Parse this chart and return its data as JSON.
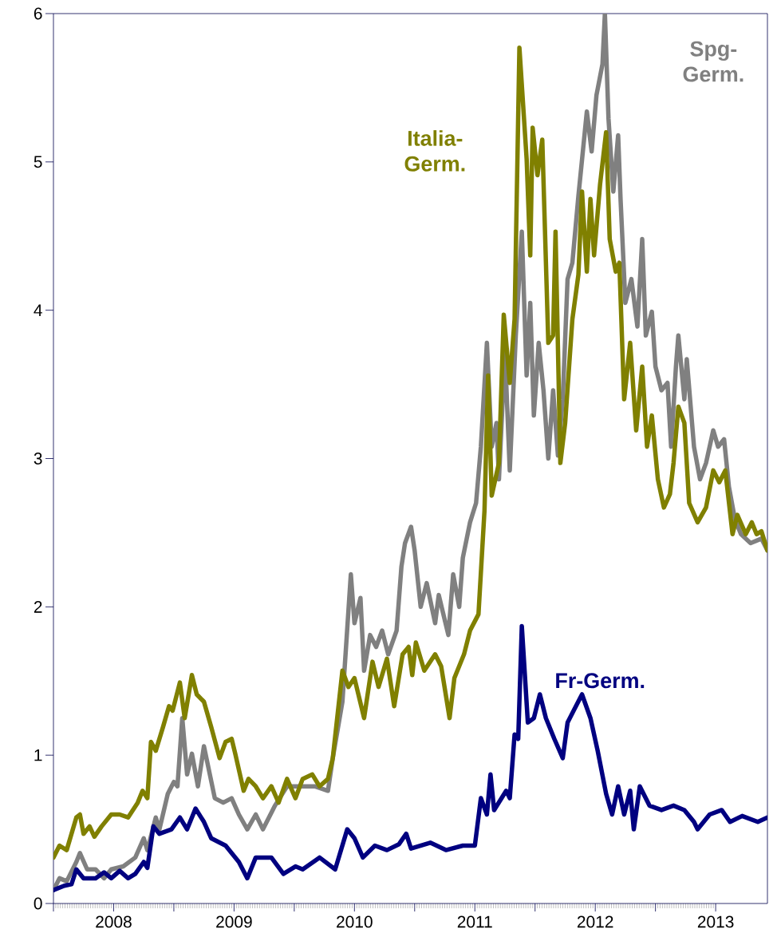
{
  "chart_data": {
    "type": "line",
    "xlim": [
      2008,
      2013.93
    ],
    "ylim": [
      0,
      6
    ],
    "yticks": [
      0,
      1,
      2,
      3,
      4,
      5,
      6
    ],
    "xticks": [
      {
        "value": 2008,
        "label": null
      },
      {
        "value": 2008.5,
        "label": "2008"
      },
      {
        "value": 2009,
        "label": null
      },
      {
        "value": 2009.5,
        "label": "2009"
      },
      {
        "value": 2010,
        "label": null
      },
      {
        "value": 2010.5,
        "label": "2010"
      },
      {
        "value": 2011,
        "label": null
      },
      {
        "value": 2011.5,
        "label": "2011"
      },
      {
        "value": 2012,
        "label": null
      },
      {
        "value": 2012.5,
        "label": "2012"
      },
      {
        "value": 2013,
        "label": null
      },
      {
        "value": 2013.5,
        "label": "2013"
      }
    ],
    "series": [
      {
        "name": "Spg-Germ.",
        "color": "#808080",
        "x": [
          2008.0,
          2008.05,
          2008.11,
          2008.19,
          2008.22,
          2008.28,
          2008.35,
          2008.42,
          2008.48,
          2008.58,
          2008.68,
          2008.75,
          2008.78,
          2008.85,
          2008.88,
          2008.95,
          2009.0,
          2009.03,
          2009.07,
          2009.11,
          2009.15,
          2009.2,
          2009.25,
          2009.34,
          2009.41,
          2009.48,
          2009.54,
          2009.61,
          2009.68,
          2009.74,
          2009.84,
          2009.94,
          2010.04,
          2010.17,
          2010.28,
          2010.32,
          2010.4,
          2010.47,
          2010.5,
          2010.55,
          2010.58,
          2010.63,
          2010.68,
          2010.73,
          2010.78,
          2010.85,
          2010.89,
          2010.92,
          2010.97,
          2011.0,
          2011.05,
          2011.1,
          2011.17,
          2011.2,
          2011.28,
          2011.32,
          2011.37,
          2011.4,
          2011.46,
          2011.51,
          2011.55,
          2011.6,
          2011.64,
          2011.68,
          2011.7,
          2011.75,
          2011.79,
          2011.84,
          2011.89,
          2011.93,
          2011.96,
          2011.99,
          2012.03,
          2012.07,
          2012.11,
          2012.15,
          2012.19,
          2012.23,
          2012.27,
          2012.31,
          2012.36,
          2012.43,
          2012.47,
          2012.51,
          2012.56,
          2012.58,
          2012.61,
          2012.65,
          2012.69,
          2012.71,
          2012.75,
          2012.8,
          2012.85,
          2012.89,
          2012.92,
          2012.97,
          2013.0,
          2013.05,
          2013.1,
          2013.13,
          2013.17,
          2013.19,
          2013.24,
          2013.26,
          2013.32,
          2013.37,
          2013.42,
          2013.48,
          2013.52,
          2013.57,
          2013.61,
          2013.66,
          2013.71,
          2013.79,
          2013.88,
          2013.93
        ],
        "values": [
          0.09,
          0.17,
          0.15,
          0.28,
          0.34,
          0.23,
          0.23,
          0.17,
          0.23,
          0.25,
          0.31,
          0.44,
          0.36,
          0.58,
          0.5,
          0.74,
          0.82,
          0.79,
          1.25,
          0.87,
          1.01,
          0.79,
          1.06,
          0.71,
          0.68,
          0.71,
          0.6,
          0.5,
          0.6,
          0.5,
          0.66,
          0.79,
          0.79,
          0.79,
          0.76,
          0.98,
          1.36,
          2.22,
          1.89,
          2.06,
          1.57,
          1.81,
          1.73,
          1.84,
          1.68,
          1.84,
          2.27,
          2.43,
          2.54,
          2.38,
          2.0,
          2.16,
          1.89,
          2.08,
          1.81,
          2.22,
          2.0,
          2.33,
          2.57,
          2.7,
          3.08,
          3.78,
          3.08,
          3.24,
          2.86,
          3.72,
          2.92,
          3.83,
          4.53,
          3.56,
          4.05,
          3.29,
          3.78,
          3.46,
          3.0,
          3.46,
          3.02,
          3.4,
          4.21,
          4.32,
          4.77,
          5.34,
          5.07,
          5.45,
          5.66,
          6.0,
          5.29,
          4.8,
          5.18,
          4.75,
          4.05,
          4.21,
          3.89,
          4.48,
          3.83,
          3.99,
          3.62,
          3.46,
          3.51,
          3.08,
          3.62,
          3.83,
          3.4,
          3.67,
          3.08,
          2.86,
          2.97,
          3.19,
          3.08,
          3.13,
          2.81,
          2.59,
          2.49,
          2.43,
          2.46,
          2.38
        ]
      },
      {
        "name": "Italia-Germ.",
        "color": "#808000",
        "x": [
          2008.0,
          2008.05,
          2008.11,
          2008.19,
          2008.22,
          2008.25,
          2008.3,
          2008.34,
          2008.4,
          2008.48,
          2008.55,
          2008.62,
          2008.7,
          2008.74,
          2008.78,
          2008.81,
          2008.85,
          2008.91,
          2008.96,
          2008.99,
          2009.05,
          2009.09,
          2009.15,
          2009.19,
          2009.25,
          2009.31,
          2009.38,
          2009.43,
          2009.48,
          2009.51,
          2009.58,
          2009.62,
          2009.68,
          2009.74,
          2009.81,
          2009.87,
          2009.94,
          2010.01,
          2010.07,
          2010.15,
          2010.21,
          2010.28,
          2010.32,
          2010.4,
          2010.45,
          2010.5,
          2010.58,
          2010.65,
          2010.7,
          2010.77,
          2010.83,
          2010.9,
          2010.95,
          2010.98,
          2011.01,
          2011.08,
          2011.17,
          2011.22,
          2011.29,
          2011.33,
          2011.41,
          2011.46,
          2011.53,
          2011.58,
          2011.61,
          2011.64,
          2011.7,
          2011.74,
          2011.79,
          2011.83,
          2011.87,
          2011.93,
          2011.96,
          2011.98,
          2012.02,
          2012.06,
          2012.11,
          2012.15,
          2012.17,
          2012.21,
          2012.25,
          2012.31,
          2012.36,
          2012.39,
          2012.43,
          2012.46,
          2012.49,
          2012.54,
          2012.59,
          2012.62,
          2012.67,
          2012.7,
          2012.74,
          2012.79,
          2012.84,
          2012.89,
          2012.93,
          2012.97,
          2013.02,
          2013.07,
          2013.12,
          2013.15,
          2013.19,
          2013.24,
          2013.28,
          2013.35,
          2013.42,
          2013.48,
          2013.53,
          2013.58,
          2013.64,
          2013.68,
          2013.75,
          2013.8,
          2013.84,
          2013.88,
          2013.93
        ],
        "values": [
          0.31,
          0.39,
          0.36,
          0.58,
          0.6,
          0.47,
          0.52,
          0.45,
          0.52,
          0.6,
          0.6,
          0.58,
          0.68,
          0.76,
          0.71,
          1.09,
          1.03,
          1.19,
          1.33,
          1.3,
          1.49,
          1.25,
          1.54,
          1.41,
          1.36,
          1.19,
          0.98,
          1.09,
          1.11,
          1.01,
          0.76,
          0.84,
          0.79,
          0.71,
          0.79,
          0.68,
          0.84,
          0.71,
          0.84,
          0.87,
          0.79,
          0.84,
          0.98,
          1.57,
          1.46,
          1.52,
          1.25,
          1.63,
          1.46,
          1.65,
          1.33,
          1.68,
          1.73,
          1.54,
          1.76,
          1.57,
          1.68,
          1.6,
          1.25,
          1.52,
          1.68,
          1.84,
          1.95,
          2.65,
          3.56,
          2.75,
          2.97,
          3.97,
          3.51,
          3.94,
          5.77,
          5.02,
          4.37,
          5.23,
          4.91,
          5.15,
          3.78,
          3.83,
          4.53,
          2.97,
          3.24,
          3.94,
          4.24,
          4.8,
          4.26,
          4.75,
          4.37,
          4.85,
          5.2,
          4.48,
          4.26,
          4.32,
          3.4,
          3.78,
          3.19,
          3.62,
          3.08,
          3.29,
          2.86,
          2.67,
          2.76,
          2.97,
          3.35,
          3.24,
          2.7,
          2.57,
          2.67,
          2.92,
          2.84,
          2.92,
          2.49,
          2.62,
          2.49,
          2.57,
          2.49,
          2.51,
          2.38
        ]
      },
      {
        "name": "Fr-Germ.",
        "color": "#000080",
        "x": [
          2008.0,
          2008.09,
          2008.15,
          2008.19,
          2008.25,
          2008.35,
          2008.42,
          2008.48,
          2008.55,
          2008.62,
          2008.68,
          2008.75,
          2008.78,
          2008.83,
          2008.88,
          2008.98,
          2009.05,
          2009.11,
          2009.18,
          2009.25,
          2009.31,
          2009.43,
          2009.54,
          2009.61,
          2009.68,
          2009.81,
          2009.91,
          2010.01,
          2010.07,
          2010.21,
          2010.34,
          2010.44,
          2010.5,
          2010.57,
          2010.67,
          2010.77,
          2010.87,
          2010.93,
          2010.97,
          2011.13,
          2011.26,
          2011.4,
          2011.5,
          2011.55,
          2011.6,
          2011.63,
          2011.66,
          2011.76,
          2011.79,
          2011.83,
          2011.86,
          2011.89,
          2011.94,
          2011.99,
          2012.04,
          2012.09,
          2012.16,
          2012.23,
          2012.27,
          2012.32,
          2012.39,
          2012.46,
          2012.52,
          2012.59,
          2012.64,
          2012.69,
          2012.74,
          2012.79,
          2012.82,
          2012.87,
          2012.95,
          2013.05,
          2013.15,
          2013.24,
          2013.32,
          2013.35,
          2013.45,
          2013.55,
          2013.62,
          2013.72,
          2013.85,
          2013.93
        ],
        "values": [
          0.09,
          0.12,
          0.13,
          0.23,
          0.17,
          0.17,
          0.21,
          0.17,
          0.22,
          0.17,
          0.2,
          0.28,
          0.24,
          0.52,
          0.47,
          0.5,
          0.58,
          0.5,
          0.64,
          0.55,
          0.44,
          0.39,
          0.28,
          0.17,
          0.31,
          0.31,
          0.2,
          0.25,
          0.23,
          0.31,
          0.23,
          0.5,
          0.44,
          0.31,
          0.39,
          0.36,
          0.4,
          0.47,
          0.37,
          0.41,
          0.36,
          0.39,
          0.39,
          0.71,
          0.6,
          0.87,
          0.63,
          0.76,
          0.71,
          1.14,
          1.11,
          1.87,
          1.22,
          1.25,
          1.41,
          1.25,
          1.11,
          0.98,
          1.22,
          1.3,
          1.41,
          1.25,
          1.03,
          0.74,
          0.6,
          0.79,
          0.6,
          0.76,
          0.5,
          0.79,
          0.66,
          0.63,
          0.66,
          0.63,
          0.55,
          0.5,
          0.6,
          0.63,
          0.55,
          0.59,
          0.55,
          0.58
        ]
      }
    ]
  }
}
